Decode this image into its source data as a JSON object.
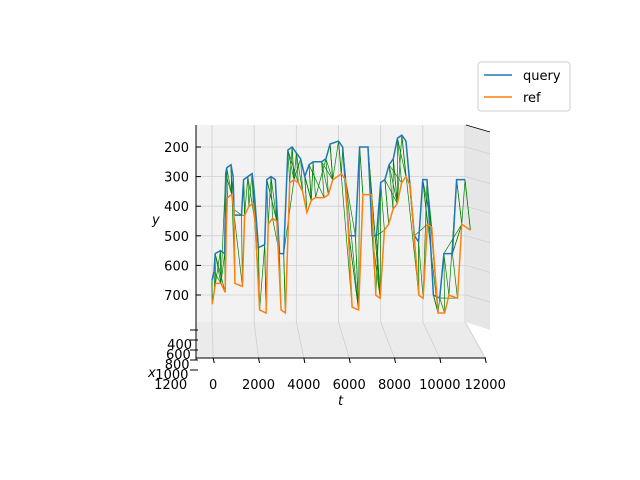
{
  "chart_data": {
    "type": "line",
    "projection": "3d",
    "xlabel": "t",
    "ylabel": "y",
    "zlabel": "x",
    "t_ticks": [
      "0",
      "2000",
      "4000",
      "6000",
      "8000",
      "10000",
      "12000"
    ],
    "y_ticks": [
      "200",
      "300",
      "400",
      "500",
      "600",
      "700"
    ],
    "x_ticks": [
      "400",
      "600",
      "800",
      "1000",
      "1200"
    ],
    "t_range": [
      0,
      12000
    ],
    "y_range": [
      150,
      800
    ],
    "grid": true,
    "legend_position": "upper-right",
    "colors": {
      "query": "#1f77b4",
      "ref": "#ff7f0e",
      "match": "#008000",
      "pane": "#f2f2f2",
      "grid": "#d0d0d0"
    },
    "series": [
      {
        "name": "query",
        "points": [
          [
            0,
            650
          ],
          [
            100,
            620
          ],
          [
            150,
            560
          ],
          [
            400,
            550
          ],
          [
            600,
            560
          ],
          [
            650,
            290
          ],
          [
            700,
            270
          ],
          [
            900,
            260
          ],
          [
            1000,
            300
          ],
          [
            1050,
            430
          ],
          [
            1400,
            430
          ],
          [
            1500,
            310
          ],
          [
            1700,
            300
          ],
          [
            1900,
            290
          ],
          [
            2000,
            350
          ],
          [
            2200,
            540
          ],
          [
            2500,
            530
          ],
          [
            2600,
            310
          ],
          [
            2800,
            300
          ],
          [
            3000,
            310
          ],
          [
            3200,
            560
          ],
          [
            3400,
            560
          ],
          [
            3600,
            210
          ],
          [
            3800,
            200
          ],
          [
            4000,
            220
          ],
          [
            4200,
            240
          ],
          [
            4400,
            300
          ],
          [
            4600,
            260
          ],
          [
            4800,
            250
          ],
          [
            5200,
            250
          ],
          [
            5400,
            240
          ],
          [
            5600,
            190
          ],
          [
            6000,
            180
          ],
          [
            6200,
            200
          ],
          [
            6500,
            500
          ],
          [
            6800,
            500
          ],
          [
            7000,
            200
          ],
          [
            7400,
            200
          ],
          [
            7600,
            500
          ],
          [
            7800,
            500
          ],
          [
            8000,
            320
          ],
          [
            8200,
            310
          ],
          [
            8400,
            260
          ],
          [
            8600,
            240
          ],
          [
            8800,
            170
          ],
          [
            9000,
            160
          ],
          [
            9200,
            180
          ],
          [
            9600,
            500
          ],
          [
            9800,
            520
          ],
          [
            10000,
            310
          ],
          [
            10200,
            310
          ],
          [
            10500,
            700
          ],
          [
            10800,
            710
          ],
          [
            11000,
            560
          ],
          [
            11400,
            560
          ],
          [
            11600,
            310
          ],
          [
            12000,
            310
          ]
        ]
      },
      {
        "name": "ref",
        "points": [
          [
            0,
            670
          ],
          [
            100,
            620
          ],
          [
            150,
            600
          ],
          [
            400,
            600
          ],
          [
            600,
            630
          ],
          [
            650,
            410
          ],
          [
            700,
            310
          ],
          [
            900,
            300
          ],
          [
            1000,
            350
          ],
          [
            1050,
            600
          ],
          [
            1400,
            610
          ],
          [
            1500,
            370
          ],
          [
            1700,
            340
          ],
          [
            1900,
            330
          ],
          [
            2000,
            400
          ],
          [
            2200,
            690
          ],
          [
            2500,
            700
          ],
          [
            2600,
            400
          ],
          [
            2800,
            380
          ],
          [
            3000,
            390
          ],
          [
            3200,
            690
          ],
          [
            3400,
            700
          ],
          [
            3600,
            260
          ],
          [
            3800,
            250
          ],
          [
            4000,
            260
          ],
          [
            4200,
            290
          ],
          [
            4400,
            360
          ],
          [
            4600,
            320
          ],
          [
            4800,
            310
          ],
          [
            5200,
            310
          ],
          [
            5400,
            300
          ],
          [
            5600,
            250
          ],
          [
            6000,
            230
          ],
          [
            6200,
            250
          ],
          [
            6500,
            680
          ],
          [
            6800,
            690
          ],
          [
            7000,
            300
          ],
          [
            7400,
            300
          ],
          [
            7600,
            640
          ],
          [
            7800,
            650
          ],
          [
            8000,
            420
          ],
          [
            8200,
            400
          ],
          [
            8400,
            350
          ],
          [
            8600,
            330
          ],
          [
            8800,
            260
          ],
          [
            9000,
            240
          ],
          [
            9200,
            270
          ],
          [
            9600,
            640
          ],
          [
            9800,
            650
          ],
          [
            10000,
            400
          ],
          [
            10200,
            410
          ],
          [
            10500,
            700
          ],
          [
            10800,
            700
          ],
          [
            11000,
            640
          ],
          [
            11400,
            650
          ],
          [
            11600,
            400
          ],
          [
            12000,
            420
          ]
        ]
      }
    ]
  },
  "legend": {
    "items": [
      {
        "label": "query",
        "color": "#1f77b4"
      },
      {
        "label": "ref",
        "color": "#ff7f0e"
      }
    ]
  }
}
